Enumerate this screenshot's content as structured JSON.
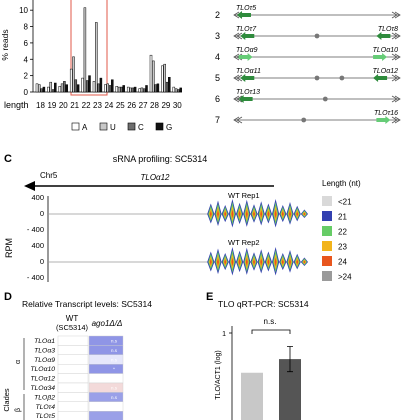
{
  "panel_a": {
    "chart_data": {
      "type": "bar",
      "title": "",
      "ylabel": "% reads",
      "xlabel": "length",
      "ylim": [
        0,
        11
      ],
      "yticks": [
        "0",
        "2",
        "4",
        "6",
        "8",
        "10"
      ],
      "categories": [
        "18",
        "19",
        "20",
        "21",
        "22",
        "23",
        "24",
        "25",
        "26",
        "27",
        "28",
        "29",
        "30"
      ],
      "series": [
        {
          "name": "A",
          "color": "#ffffff",
          "values": [
            1.0,
            0.6,
            0.7,
            2.8,
            1.7,
            1.3,
            0.9,
            0.7,
            0.6,
            0.4,
            4.5,
            3.2,
            0.6
          ]
        },
        {
          "name": "U",
          "color": "#c8c8c8",
          "values": [
            0.9,
            1.2,
            1.0,
            4.3,
            10.3,
            8.5,
            1.0,
            0.6,
            0.5,
            0.5,
            3.8,
            3.4,
            0.4
          ]
        },
        {
          "name": "C",
          "color": "#6e6e6e",
          "values": [
            0.4,
            0.3,
            1.3,
            1.5,
            1.4,
            1.0,
            0.8,
            0.6,
            0.5,
            0.4,
            0.9,
            1.2,
            0.3
          ]
        },
        {
          "name": "G",
          "color": "#111111",
          "values": [
            0.6,
            1.1,
            0.9,
            0.9,
            2.0,
            1.7,
            1.5,
            0.8,
            0.6,
            0.8,
            1.0,
            1.8,
            0.5
          ]
        }
      ],
      "highlight": [
        "21",
        "23"
      ],
      "legend_position": "bottom"
    }
  },
  "panel_b": {
    "rows": [
      {
        "num": "2",
        "label_left": "TLOτ5",
        "label_right": "",
        "arrows": [
          {
            "pos": 0.06,
            "dir": "left"
          }
        ],
        "dots": []
      },
      {
        "num": "3",
        "label_left": "TLOτ7",
        "label_right": "TLOτ8",
        "arrows": [
          {
            "pos": 0.08,
            "dir": "left"
          },
          {
            "pos": 0.9,
            "dir": "left"
          }
        ],
        "dots": [
          0.5
        ]
      },
      {
        "num": "4",
        "label_left": "TLOα9",
        "label_right": "TLOα10",
        "arrows": [
          {
            "pos": 0.07,
            "dir": "right"
          },
          {
            "pos": 0.88,
            "dir": "right"
          }
        ],
        "dots": []
      },
      {
        "num": "5",
        "label_left": "TLOα11",
        "label_right": "TLOα12",
        "arrows": [
          {
            "pos": 0.08,
            "dir": "left"
          },
          {
            "pos": 0.88,
            "dir": "left"
          }
        ],
        "dots": [
          0.5,
          0.65
        ]
      },
      {
        "num": "6",
        "label_left": "TLOτ13",
        "label_right": "",
        "arrows": [
          {
            "pos": 0.07,
            "dir": "left"
          }
        ],
        "dots": [
          0.55
        ]
      },
      {
        "num": "7",
        "label_left": "",
        "label_right": "TLOτ16",
        "arrows": [
          {
            "pos": 0.9,
            "dir": "right"
          }
        ],
        "dots": [
          0.42
        ]
      }
    ]
  },
  "panel_c": {
    "letter": "C",
    "title": "sRNA profiling: SC5314",
    "chromosome": "Chr5",
    "gene": "TLOα12",
    "ylabel": "RPM",
    "yticks": [
      "400",
      "0",
      "- 400",
      "400",
      "0",
      "- 400"
    ],
    "rep1": "WT Rep1",
    "rep2": "WT Rep2",
    "legend_title": "Length (nt)",
    "legend": [
      {
        "label": "<21",
        "color": "#d9d9d9"
      },
      {
        "label": "21",
        "color": "#3340b0"
      },
      {
        "label": "22",
        "color": "#66cc66"
      },
      {
        "label": "23",
        "color": "#f2b41c"
      },
      {
        "label": "24",
        "color": "#e8561e"
      },
      {
        "label": ">24",
        "color": "#9a9a9a"
      }
    ]
  },
  "panel_d": {
    "letter": "D",
    "title": "Relative Transcript levels: SC5314",
    "col_wt": "WT",
    "col_wt_sub": "(SC5314)",
    "col_mut": "ago1Δ/Δ",
    "clades_label": "Clades",
    "clade_alpha": "α",
    "clade_beta": "β",
    "rows": [
      {
        "name": "TLOα1",
        "tag": "n.s",
        "color": "#8f95e6"
      },
      {
        "name": "TLOα3",
        "tag": "n.s",
        "color": "#8f95e6"
      },
      {
        "name": "TLOα9",
        "tag": "n.s",
        "color": "#e6e7fb"
      },
      {
        "name": "TLOα10",
        "tag": "*",
        "color": "#8f95e6"
      },
      {
        "name": "TLOα12",
        "tag": "",
        "color": "#ffffff"
      },
      {
        "name": "TLOα34",
        "tag": "n.s",
        "color": "#f3dada"
      },
      {
        "name": "TLOβ2",
        "tag": "n.s",
        "color": "#9aa0e8"
      },
      {
        "name": "TLOτ4",
        "tag": "n.s",
        "color": "#ffffff"
      },
      {
        "name": "TLOτ5",
        "tag": "",
        "color": "#9aa0e8"
      }
    ]
  },
  "panel_e": {
    "letter": "E",
    "title": "TLO qRT-PCR: SC5314",
    "ylabel": "TLO/ACT1 (log)",
    "ytick": "1",
    "significance": "n.s.",
    "chart_data": {
      "type": "bar",
      "categories": [
        "WT",
        "ago1Δ/Δ"
      ],
      "values": [
        0.45,
        0.58
      ],
      "errors": [
        0,
        0.12
      ],
      "colors": [
        "#c8c8c8",
        "#555555"
      ]
    }
  }
}
